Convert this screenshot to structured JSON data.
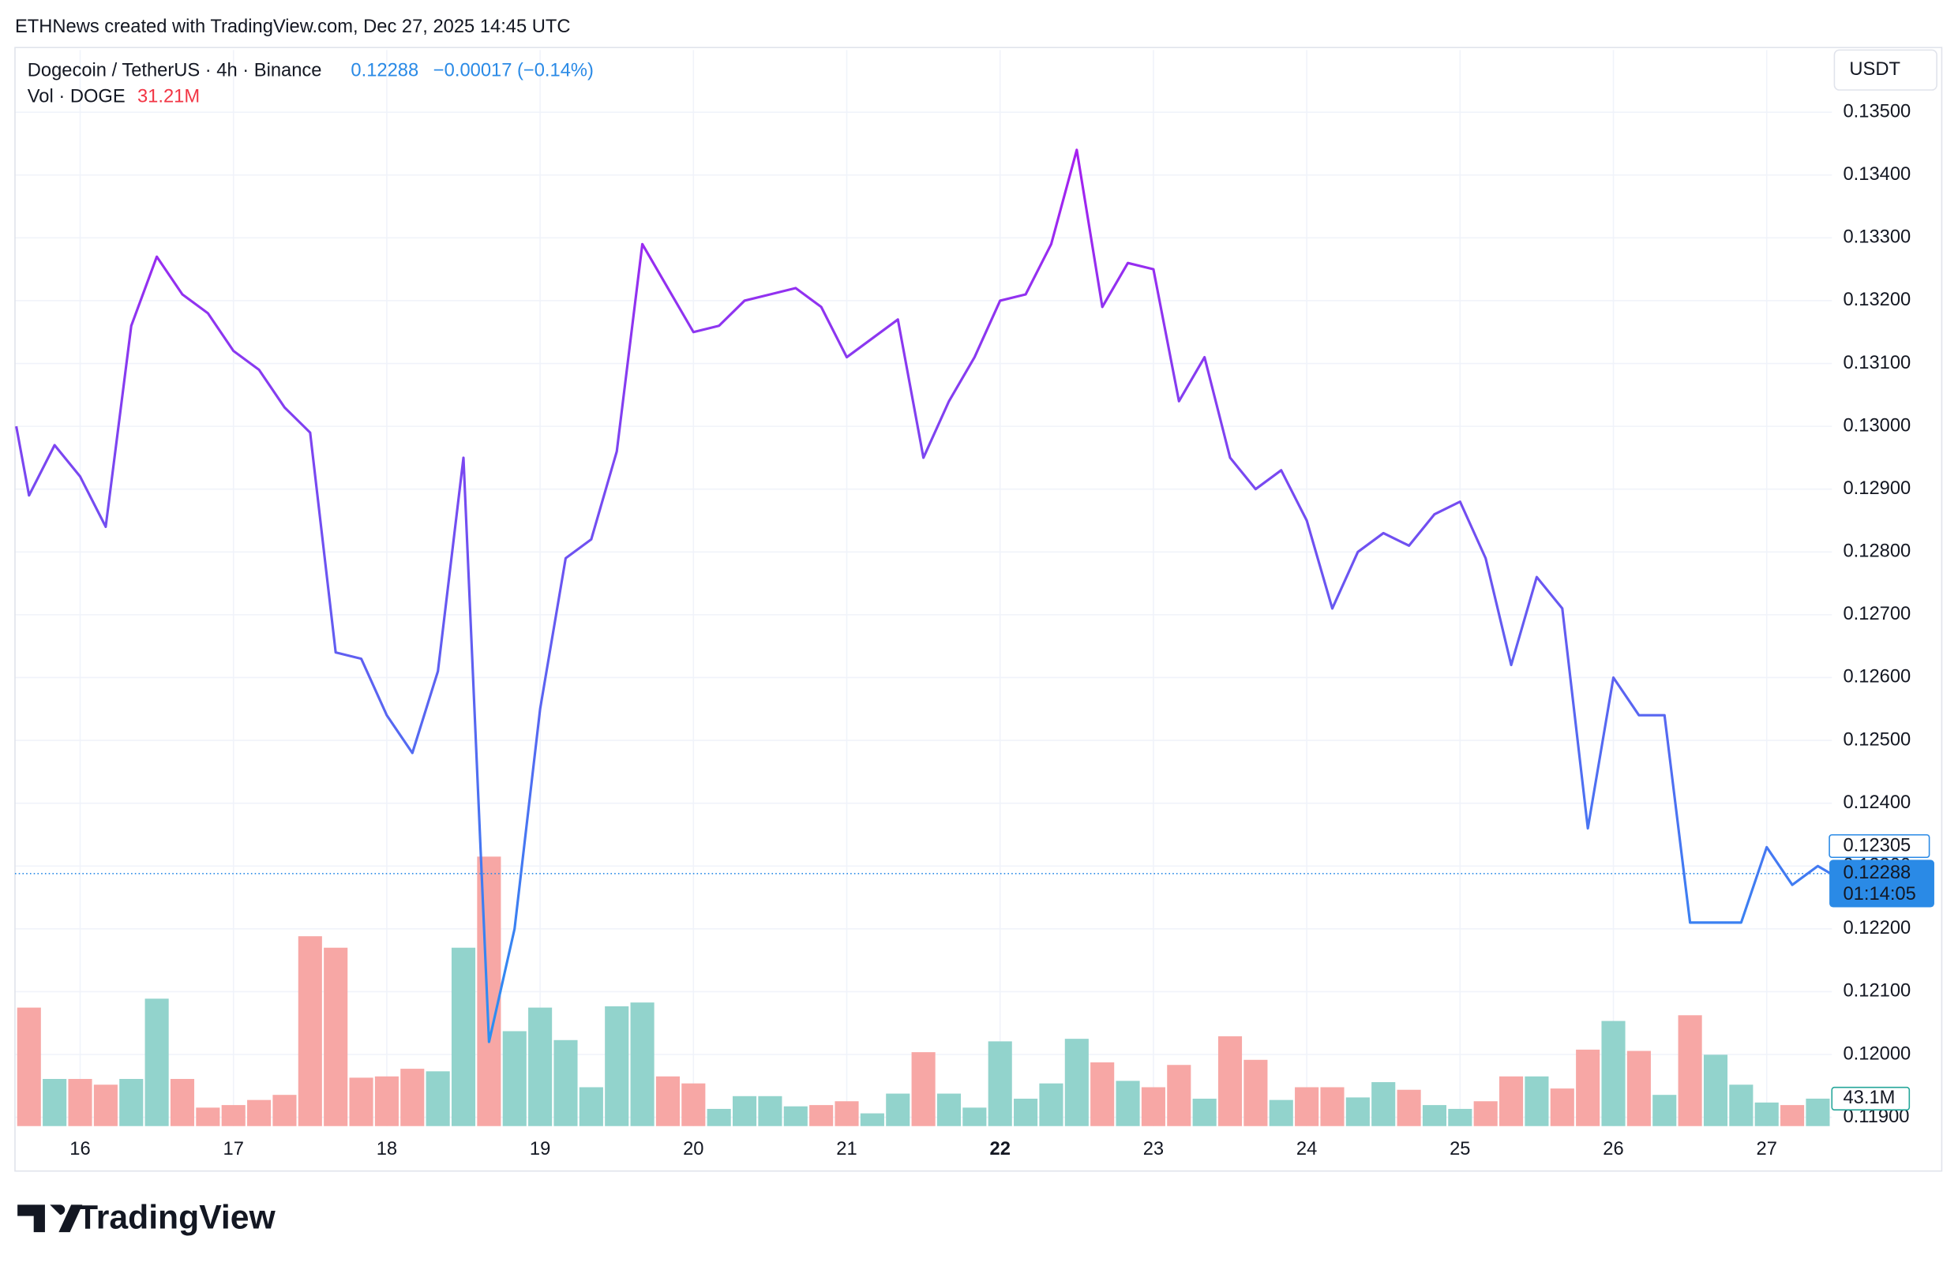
{
  "chart_data": {
    "type": "line",
    "title": "ETHNews created with TradingView.com, Dec 27, 2025 14:45 UTC",
    "last_price": "0.12288",
    "change": "−0.00017 (−0.14%)",
    "volume_header_value": "31.21M",
    "y_unit": "USDT",
    "price_marker": {
      "value": 0.12305,
      "label": "0.12305"
    },
    "current_price": {
      "value": 0.12288,
      "label": "0.12288"
    },
    "countdown": "01:14:05",
    "volume_last_label": "43.1M",
    "footer_logo": "TradingView",
    "line_gradient": [
      "#a61ff0",
      "#2b8ff2"
    ],
    "grid": true,
    "x": [
      -10,
      -8,
      -4,
      0,
      4,
      8,
      12,
      16,
      20,
      24,
      28,
      32,
      36,
      40,
      44,
      48,
      52,
      56,
      60,
      64,
      68,
      72,
      76,
      80,
      84,
      88,
      92,
      96,
      100,
      104,
      108,
      112,
      116,
      120,
      124,
      128,
      132,
      136,
      140,
      144,
      148,
      152,
      156,
      160,
      164,
      168,
      172,
      176,
      180,
      184,
      188,
      192,
      196,
      200,
      204,
      208,
      212,
      216,
      220,
      224,
      228,
      232,
      236,
      240,
      244,
      248,
      252,
      256,
      260,
      264,
      268,
      272,
      274
    ],
    "series": [
      {
        "name": "Dogecoin / TetherUS · 4h · Binance",
        "color": "#7b3ff0",
        "values": [
          0.13,
          0.1289,
          0.1297,
          0.1292,
          0.1284,
          0.1316,
          0.1327,
          0.1321,
          0.1318,
          0.1312,
          0.1309,
          0.1303,
          0.1299,
          0.1264,
          0.1263,
          0.1254,
          0.1248,
          0.1261,
          0.1295,
          0.1202,
          0.122,
          0.1255,
          0.1279,
          0.1282,
          0.1296,
          0.1329,
          0.1322,
          0.1315,
          0.1316,
          0.132,
          0.1321,
          0.1322,
          0.1319,
          0.1311,
          0.1314,
          0.1317,
          0.1295,
          0.1304,
          0.1311,
          0.132,
          0.1321,
          0.1329,
          0.1344,
          0.1319,
          0.1326,
          0.1325,
          0.1304,
          0.1311,
          0.1295,
          0.129,
          0.1293,
          0.1285,
          0.1271,
          0.128,
          0.1283,
          0.1281,
          0.1286,
          0.1288,
          0.1279,
          0.1262,
          0.1276,
          0.1271,
          0.1236,
          0.126,
          0.1254,
          0.1254,
          0.1221,
          0.1221,
          0.1221,
          0.1233,
          0.1227,
          0.123,
          0.12288
        ]
      }
    ],
    "volume": {
      "name": "Vol · DOGE",
      "up_color": "#92d3cc",
      "down_color": "#f7a7a5",
      "ylim": [
        0,
        1689
      ],
      "x": [
        -8,
        -4,
        0,
        4,
        8,
        12,
        16,
        20,
        24,
        28,
        32,
        36,
        40,
        44,
        48,
        52,
        56,
        60,
        64,
        68,
        72,
        76,
        80,
        84,
        88,
        92,
        96,
        100,
        104,
        108,
        112,
        116,
        120,
        124,
        128,
        132,
        136,
        140,
        144,
        148,
        152,
        156,
        160,
        164,
        168,
        172,
        176,
        180,
        184,
        188,
        192,
        196,
        200,
        204,
        208,
        212,
        216,
        220,
        224,
        228,
        232,
        236,
        240,
        244,
        248,
        252,
        256,
        260,
        264,
        268,
        272
      ],
      "values": [
        186,
        74,
        74,
        65,
        74,
        200,
        74,
        29,
        33,
        41,
        49,
        298,
        280,
        76,
        78,
        90,
        86,
        280,
        423,
        149,
        186,
        135,
        61,
        188,
        194,
        78,
        67,
        27,
        47,
        47,
        31,
        33,
        39,
        20,
        51,
        116,
        51,
        29,
        133,
        43,
        67,
        137,
        100,
        71,
        61,
        96,
        43,
        141,
        104,
        41,
        61,
        61,
        45,
        69,
        57,
        33,
        27,
        39,
        78,
        78,
        59,
        120,
        165,
        118,
        49,
        174,
        112,
        65,
        37,
        33,
        43.1
      ]
    },
    "xlim": [
      -10.2,
      274.2
    ],
    "xticks": [
      {
        "value": 0,
        "label": "16"
      },
      {
        "value": 24,
        "label": "17"
      },
      {
        "value": 48,
        "label": "18"
      },
      {
        "value": 72,
        "label": "19"
      },
      {
        "value": 96,
        "label": "20"
      },
      {
        "value": 120,
        "label": "21"
      },
      {
        "value": 144,
        "label": "22"
      },
      {
        "value": 168,
        "label": "23"
      },
      {
        "value": 192,
        "label": "24"
      },
      {
        "value": 216,
        "label": "25"
      },
      {
        "value": 240,
        "label": "26"
      },
      {
        "value": 264,
        "label": "27"
      }
    ],
    "ylim": [
      0.11886,
      0.13599
    ],
    "yticks": [
      {
        "value": 0.119,
        "label": "0.11900"
      },
      {
        "value": 0.12,
        "label": "0.12000"
      },
      {
        "value": 0.121,
        "label": "0.12100"
      },
      {
        "value": 0.122,
        "label": "0.12200"
      },
      {
        "value": 0.123,
        "label": "0.12300"
      },
      {
        "value": 0.124,
        "label": "0.12400"
      },
      {
        "value": 0.125,
        "label": "0.12500"
      },
      {
        "value": 0.126,
        "label": "0.12600"
      },
      {
        "value": 0.127,
        "label": "0.12700"
      },
      {
        "value": 0.128,
        "label": "0.12800"
      },
      {
        "value": 0.129,
        "label": "0.12900"
      },
      {
        "value": 0.13,
        "label": "0.13000"
      },
      {
        "value": 0.131,
        "label": "0.13100"
      },
      {
        "value": 0.132,
        "label": "0.13200"
      },
      {
        "value": 0.133,
        "label": "0.13300"
      },
      {
        "value": 0.134,
        "label": "0.13400"
      },
      {
        "value": 0.135,
        "label": "0.13500"
      }
    ]
  }
}
